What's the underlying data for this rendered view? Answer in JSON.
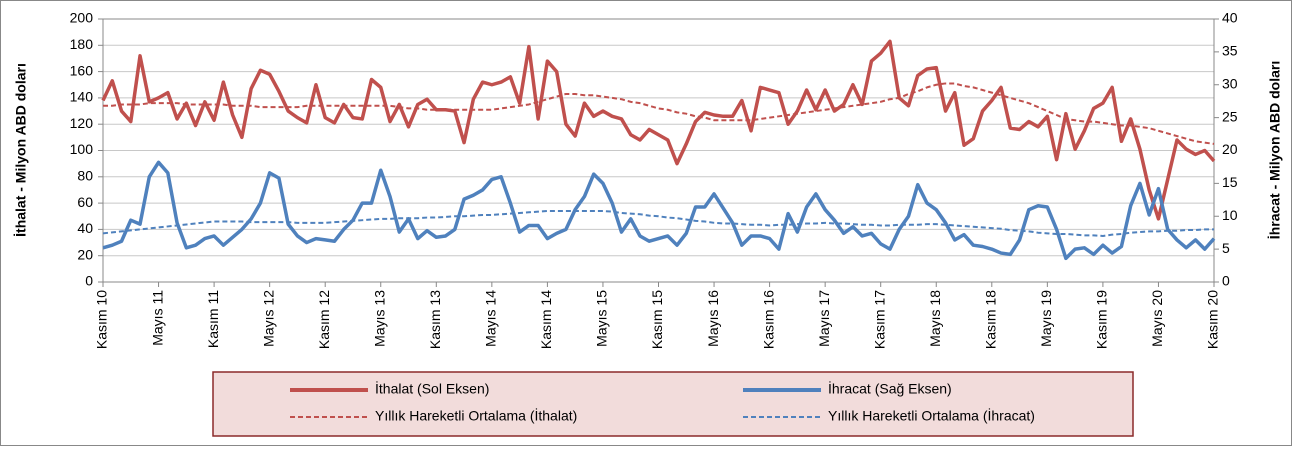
{
  "chart_data": {
    "type": "line",
    "ylabel": "İthalat - Milyon  ABD doları",
    "y2label": "İhracat - Milyon ABD  doları",
    "ylim": [
      0,
      200
    ],
    "yticks": [
      0,
      20,
      40,
      60,
      80,
      100,
      120,
      140,
      160,
      180,
      200
    ],
    "y2lim": [
      0,
      40
    ],
    "y2ticks": [
      0,
      5,
      10,
      15,
      20,
      25,
      30,
      35,
      40
    ],
    "grid": true,
    "legend": "bottom",
    "categories": [
      "Kasım 10",
      null,
      null,
      null,
      null,
      null,
      "Mayıs 11",
      null,
      null,
      null,
      null,
      null,
      "Kasım 11",
      null,
      null,
      null,
      null,
      null,
      "Mayıs 12",
      null,
      null,
      null,
      null,
      null,
      "Kasım 12",
      null,
      null,
      null,
      null,
      null,
      "Mayıs 13",
      null,
      null,
      null,
      null,
      null,
      "Kasım 13",
      null,
      null,
      null,
      null,
      null,
      "Mayıs 14",
      null,
      null,
      null,
      null,
      null,
      "Kasım 14",
      null,
      null,
      null,
      null,
      null,
      "Mayıs 15",
      null,
      null,
      null,
      null,
      null,
      "Kasım 15",
      null,
      null,
      null,
      null,
      null,
      "Mayıs 16",
      null,
      null,
      null,
      null,
      null,
      "Kasım 16",
      null,
      null,
      null,
      null,
      null,
      "Mayıs 17",
      null,
      null,
      null,
      null,
      null,
      "Kasım 17",
      null,
      null,
      null,
      null,
      null,
      "Mayıs 18",
      null,
      null,
      null,
      null,
      null,
      "Kasım 18",
      null,
      null,
      null,
      null,
      null,
      "Mayıs 19",
      null,
      null,
      null,
      null,
      null,
      "Kasım 19",
      null,
      null,
      null,
      null,
      null,
      "Mayıs 20",
      null,
      null,
      null,
      null,
      null,
      "Kasım 20"
    ],
    "series": [
      {
        "name": "İthalat (Sol Eksen)",
        "color": "#c0504d",
        "dashed": false,
        "axis": "y",
        "values": [
          138,
          153,
          130,
          122,
          172,
          137,
          140,
          144,
          124,
          136,
          119,
          137,
          123,
          152,
          127,
          110,
          147,
          161,
          158,
          145,
          130,
          125,
          121,
          150,
          125,
          121,
          135,
          125,
          124,
          154,
          148,
          122,
          135,
          118,
          135,
          139,
          131,
          131,
          130,
          106,
          139,
          152,
          150,
          152,
          156,
          136,
          179,
          124,
          168,
          160,
          120,
          111,
          136,
          126,
          130,
          126,
          124,
          112,
          108,
          116,
          112,
          108,
          90,
          105,
          122,
          129,
          127,
          126,
          126,
          138,
          115,
          148,
          146,
          144,
          120,
          130,
          146,
          131,
          146,
          130,
          135,
          150,
          135,
          168,
          174,
          183,
          140,
          134,
          157,
          162,
          163,
          130,
          144,
          104,
          109,
          130,
          138,
          148,
          117,
          116,
          122,
          118,
          126,
          93,
          128,
          101,
          115,
          132,
          136,
          148,
          107,
          124,
          101,
          70,
          48,
          78,
          108,
          101,
          97,
          100,
          92
        ]
      },
      {
        "name": "İhracat (Sağ Eksen)",
        "color": "#4f81bd",
        "dashed": false,
        "axis": "y2",
        "values": [
          5.2,
          5.6,
          6.2,
          9.4,
          8.8,
          16,
          18.2,
          16.6,
          9,
          5.2,
          5.6,
          6.6,
          7,
          5.6,
          6.8,
          8,
          9.6,
          12,
          16.6,
          15.8,
          8.8,
          7,
          6,
          6.6,
          6.4,
          6.2,
          8,
          9.4,
          12,
          12,
          17,
          13,
          7.6,
          9.6,
          6.6,
          7.8,
          6.8,
          7,
          8,
          12.6,
          13.2,
          14,
          15.6,
          16,
          12,
          7.6,
          8.6,
          8.6,
          6.6,
          7.4,
          8,
          11,
          13,
          16.4,
          15,
          12,
          7.6,
          9.6,
          7,
          6.2,
          6.6,
          7,
          5.6,
          7.4,
          11.4,
          11.4,
          13.4,
          11.2,
          9,
          5.6,
          7,
          7,
          6.6,
          5,
          10.4,
          7.6,
          11.4,
          13.4,
          11,
          9.4,
          7.4,
          8.4,
          7,
          7.4,
          5.8,
          5,
          8,
          10,
          14.8,
          12,
          11,
          9,
          6.4,
          7.2,
          5.6,
          5.4,
          5,
          4.4,
          4.2,
          6.4,
          11,
          11.6,
          11.4,
          8,
          3.6,
          5,
          5.2,
          4.2,
          5.6,
          4.4,
          5.4,
          11.6,
          15,
          10.2,
          14.2,
          8,
          6.4,
          5.2,
          6.4,
          5,
          6.6
        ]
      },
      {
        "name": "Yıllık Hareketli Ortalama (İthalat)",
        "color": "#c0504d",
        "dashed": true,
        "axis": "y",
        "values": [
          134,
          134,
          135,
          135,
          135,
          136,
          136,
          136,
          136,
          135,
          135,
          135,
          135,
          135,
          134,
          134,
          134,
          133,
          133,
          133,
          133,
          133,
          134,
          134,
          134,
          134,
          134,
          134,
          134,
          134,
          134,
          134,
          133,
          132,
          132,
          131,
          131,
          131,
          131,
          131,
          131,
          131,
          131,
          132,
          133,
          134,
          135,
          137,
          139,
          141,
          143,
          143,
          142,
          142,
          141,
          140,
          139,
          137,
          136,
          134,
          132,
          131,
          129,
          128,
          126,
          125,
          123,
          123,
          123,
          123,
          123,
          124,
          125,
          126,
          127,
          128,
          129,
          130,
          131,
          132,
          133,
          134,
          135,
          136,
          137,
          139,
          140,
          143,
          145,
          148,
          150,
          151,
          151,
          149,
          148,
          146,
          144,
          142,
          140,
          138,
          136,
          133,
          130,
          127,
          124,
          123,
          122,
          122,
          121,
          120,
          119,
          119,
          118,
          117,
          115,
          113,
          111,
          109,
          107,
          106,
          105
        ]
      },
      {
        "name": "Yıllık Hareketli Ortalama (İhracat)",
        "color": "#4f81bd",
        "dashed": true,
        "axis": "y2",
        "values": [
          7.4,
          7.55,
          7.7,
          7.85,
          8,
          8.15,
          8.3,
          8.45,
          8.6,
          8.75,
          8.9,
          9.05,
          9.2,
          9.2,
          9.2,
          9.2,
          9.1,
          9.1,
          9.1,
          9.1,
          9.1,
          9,
          9,
          9,
          9,
          9.1,
          9.2,
          9.3,
          9.4,
          9.5,
          9.6,
          9.6,
          9.7,
          9.7,
          9.7,
          9.8,
          9.8,
          9.9,
          10,
          10,
          10.1,
          10.2,
          10.2,
          10.3,
          10.4,
          10.5,
          10.6,
          10.7,
          10.8,
          10.8,
          10.8,
          10.8,
          10.8,
          10.8,
          10.8,
          10.7,
          10.5,
          10.4,
          10.3,
          10.1,
          10,
          9.8,
          9.7,
          9.5,
          9.3,
          9.2,
          9,
          8.9,
          8.9,
          8.8,
          8.7,
          8.7,
          8.6,
          8.7,
          8.7,
          8.8,
          8.9,
          8.9,
          9,
          8.9,
          8.9,
          8.8,
          8.7,
          8.7,
          8.6,
          8.6,
          8.7,
          8.7,
          8.7,
          8.8,
          8.8,
          8.7,
          8.6,
          8.5,
          8.4,
          8.3,
          8.2,
          8.1,
          7.9,
          7.8,
          7.7,
          7.5,
          7.4,
          7.3,
          7.3,
          7.2,
          7.1,
          7.1,
          7,
          7.2,
          7.3,
          7.5,
          7.6,
          7.7,
          7.7,
          7.8,
          7.8,
          7.9,
          7.9,
          8,
          8
        ]
      }
    ]
  }
}
